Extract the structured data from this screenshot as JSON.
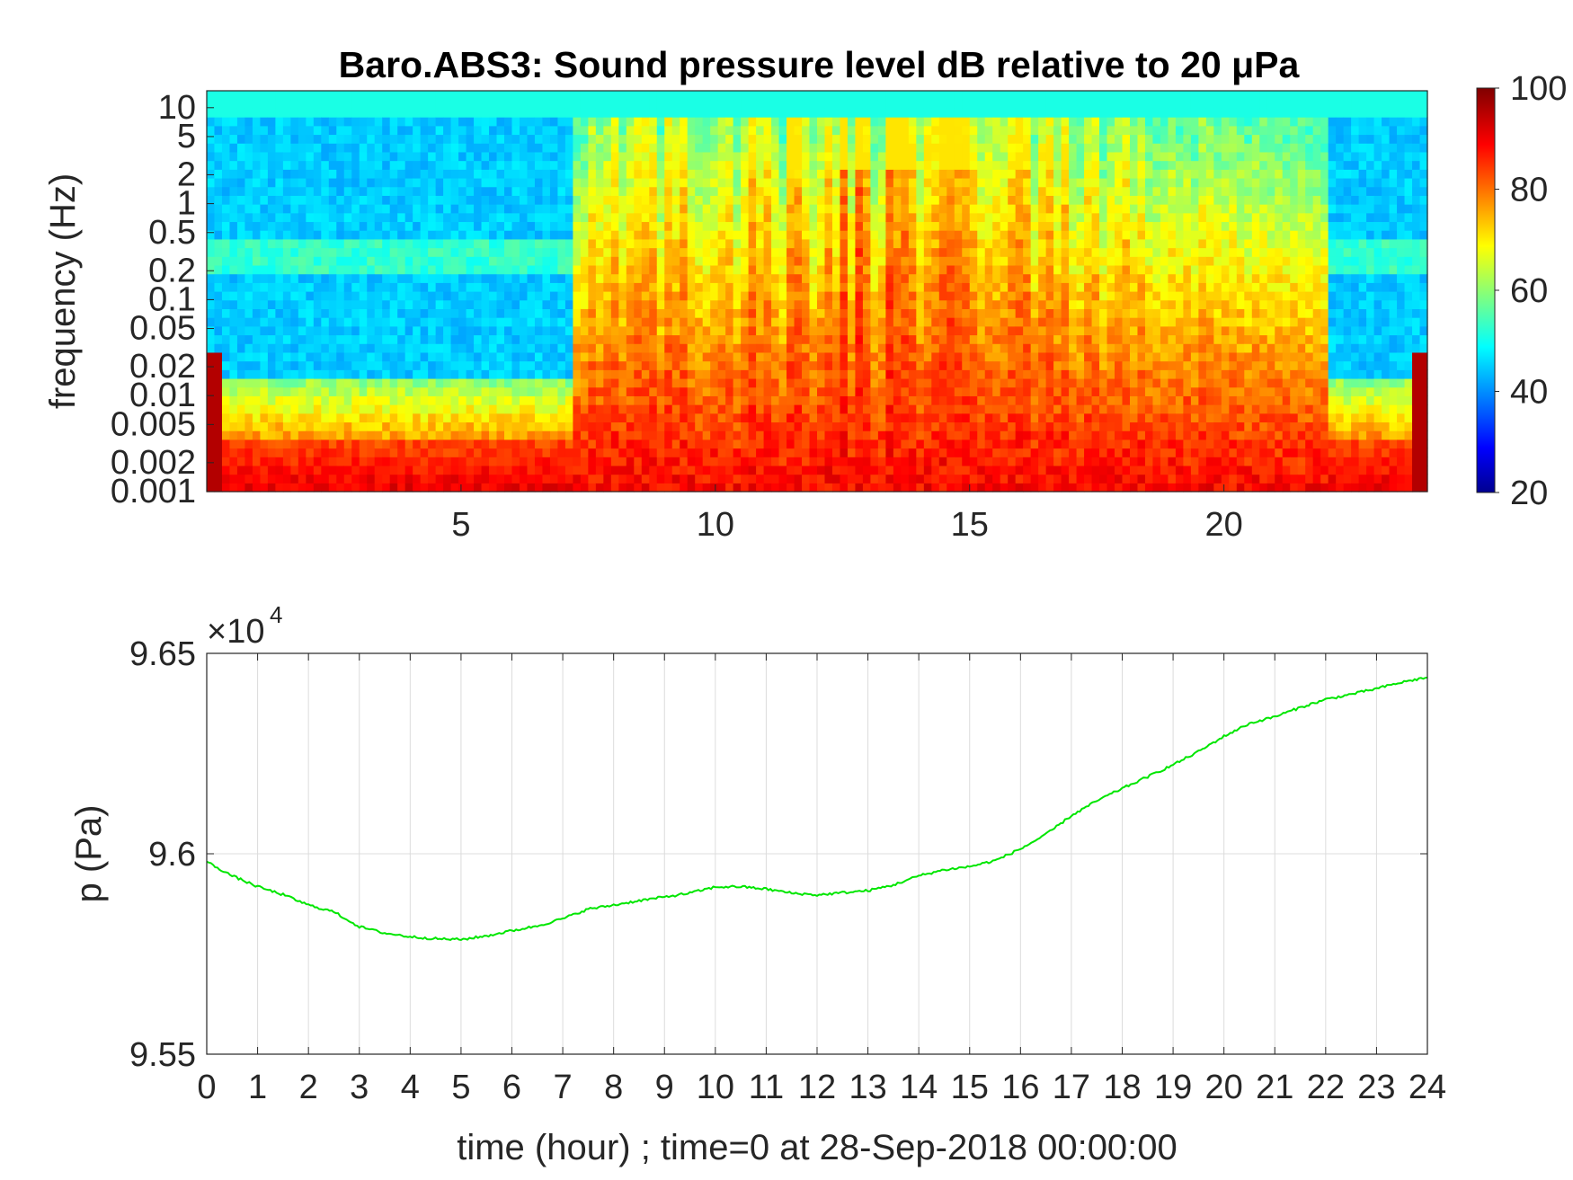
{
  "chart_data": [
    {
      "type": "heatmap",
      "title": "Baro.ABS3: Sound pressure level dB relative to 20 μPa",
      "xlabel": "",
      "ylabel": "frequency (Hz)",
      "xlim": [
        0,
        24
      ],
      "x_ticks": [
        5,
        10,
        15,
        20
      ],
      "y_scale": "log",
      "ylim": [
        0.001,
        15
      ],
      "y_ticks": [
        0.001,
        0.002,
        0.005,
        0.01,
        0.02,
        0.05,
        0.1,
        0.2,
        0.5,
        1,
        2,
        5,
        10
      ],
      "y_tick_labels": [
        "0.001",
        "0.002",
        "0.005",
        "0.01",
        "0.02",
        "0.05",
        "0.1",
        "0.2",
        "0.5",
        "1",
        "2",
        "5",
        "10"
      ],
      "colorbar": {
        "range": [
          20,
          100
        ],
        "ticks": [
          20,
          40,
          60,
          80,
          100
        ],
        "colormap": "jet"
      },
      "grid": false,
      "description_levels": {
        "quiet_hours": [
          0,
          7.2
        ],
        "active_hours": [
          7.2,
          22
        ],
        "quiet_hours_late": [
          22,
          24
        ]
      }
    },
    {
      "type": "line",
      "title": "",
      "xlabel": "time (hour) ; time=0 at 28-Sep-2018 00:00:00",
      "ylabel": "p (Pa)",
      "y_exponent_label": "×10",
      "y_exponent": "4",
      "xlim": [
        0,
        24
      ],
      "ylim": [
        9.55,
        9.65
      ],
      "x_ticks": [
        0,
        1,
        2,
        3,
        4,
        5,
        6,
        7,
        8,
        9,
        10,
        11,
        12,
        13,
        14,
        15,
        16,
        17,
        18,
        19,
        20,
        21,
        22,
        23,
        24
      ],
      "y_ticks": [
        9.55,
        9.6,
        9.65
      ],
      "y_tick_labels": [
        "9.55",
        "9.6",
        "9.65"
      ],
      "grid": true,
      "series": [
        {
          "color": "#00e600",
          "x": [
            0,
            0.5,
            1,
            1.5,
            2,
            2.5,
            3,
            3.5,
            4,
            4.5,
            5,
            5.5,
            6,
            6.5,
            7,
            7.5,
            8,
            8.5,
            9,
            9.5,
            10,
            10.5,
            11,
            11.5,
            12,
            12.5,
            13,
            13.5,
            14,
            14.5,
            15,
            15.5,
            16,
            16.5,
            17,
            17.5,
            18,
            18.5,
            19,
            19.5,
            20,
            20.5,
            21,
            21.5,
            22,
            22.5,
            23,
            23.5,
            24
          ],
          "y": [
            9.598,
            9.5945,
            9.5918,
            9.5898,
            9.5872,
            9.5855,
            9.5818,
            9.5802,
            9.5793,
            9.5788,
            9.5786,
            9.5795,
            9.5808,
            9.582,
            9.5838,
            9.5862,
            9.5872,
            9.5883,
            9.5892,
            9.5902,
            9.5917,
            9.5918,
            9.5912,
            9.5902,
            9.5897,
            9.5903,
            9.5908,
            9.5922,
            9.5945,
            9.596,
            9.5968,
            9.5983,
            9.6012,
            9.6048,
            9.6095,
            9.6132,
            9.6163,
            9.6192,
            9.6222,
            9.6255,
            9.6293,
            9.6325,
            9.6342,
            9.6365,
            9.6385,
            9.6398,
            9.6412,
            9.6428,
            9.644
          ]
        }
      ]
    }
  ]
}
